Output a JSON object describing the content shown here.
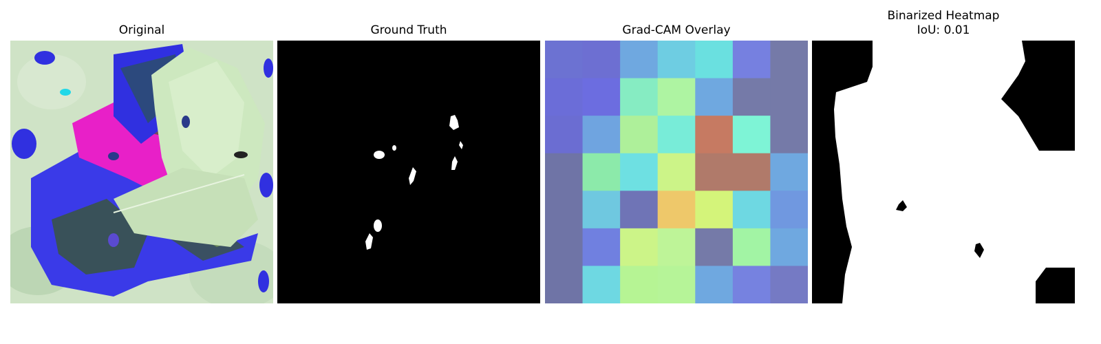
{
  "panels": [
    {
      "title": "Original"
    },
    {
      "title": "Ground Truth"
    },
    {
      "title": "Grad-CAM Overlay"
    },
    {
      "title": "Binarized Heatmap",
      "subtitle": "IoU: 0.01"
    }
  ],
  "gradcam": {
    "grid": [
      [
        "#6c72d2",
        "#6d6fd2",
        "#6fa8e0",
        "#6ecde2",
        "#6ae0e0",
        "#7680e0",
        "#757aa8"
      ],
      [
        "#6b6dd8",
        "#6c6de0",
        "#86ecc2",
        "#aef4a2",
        "#6fa8e0",
        "#757aa8",
        "#757aa8"
      ],
      [
        "#6b6dd2",
        "#6fa4e0",
        "#aef09a",
        "#78ecd8",
        "#c67a62",
        "#7ef4d6",
        "#757aa8"
      ],
      [
        "#6f74a6",
        "#8ceaaa",
        "#6ee0e2",
        "#ccf488",
        "#b07a6a",
        "#b07a6a",
        "#6fa8e0"
      ],
      [
        "#6f74a6",
        "#6fc8e0",
        "#6f74b6",
        "#eec86a",
        "#d4f47a",
        "#6ed8e2",
        "#7098e0"
      ],
      [
        "#6f74a6",
        "#7080e0",
        "#ccf488",
        "#bef498",
        "#757aa8",
        "#a2f4a4",
        "#6fa8e0"
      ],
      [
        "#6f74a6",
        "#6ed8e2",
        "#b6f494",
        "#b6f498",
        "#6fa8e0",
        "#7682e0",
        "#757ac4"
      ]
    ]
  }
}
